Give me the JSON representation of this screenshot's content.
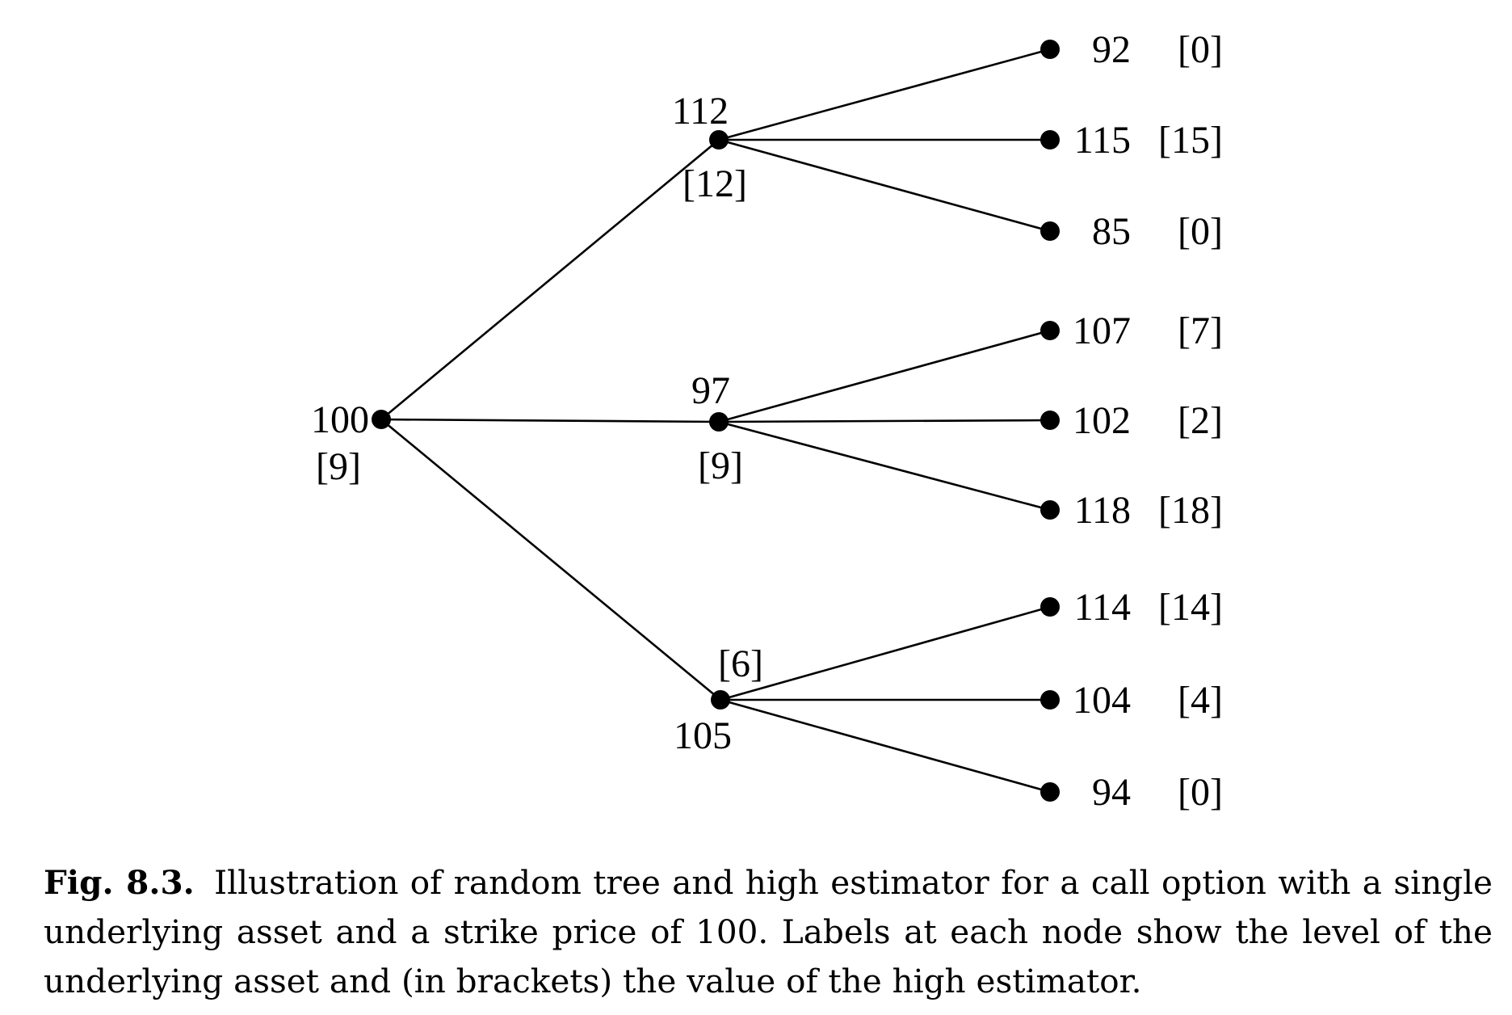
{
  "diagram": {
    "root": {
      "level": "100",
      "value": "[9]"
    },
    "branches": [
      {
        "level": "112",
        "value": "[12]",
        "leaves": [
          {
            "level": "92",
            "value": "[0]"
          },
          {
            "level": "115",
            "value": "[15]"
          },
          {
            "level": "85",
            "value": "[0]"
          }
        ]
      },
      {
        "level": "97",
        "value": "[9]",
        "leaves": [
          {
            "level": "107",
            "value": "[7]"
          },
          {
            "level": "102",
            "value": "[2]"
          },
          {
            "level": "118",
            "value": "[18]"
          }
        ]
      },
      {
        "level": "105",
        "value": "[6]",
        "leaves": [
          {
            "level": "114",
            "value": "[14]"
          },
          {
            "level": "104",
            "value": "[4]"
          },
          {
            "level": "94",
            "value": "[0]"
          }
        ]
      }
    ]
  },
  "caption": {
    "label": "Fig. 8.3.",
    "text": "Illustration of random tree and high estimator for a call option with a single underlying asset and a strike price of 100. Labels at each node show the level of the underlying asset and (in brackets) the value of the high estimator."
  }
}
